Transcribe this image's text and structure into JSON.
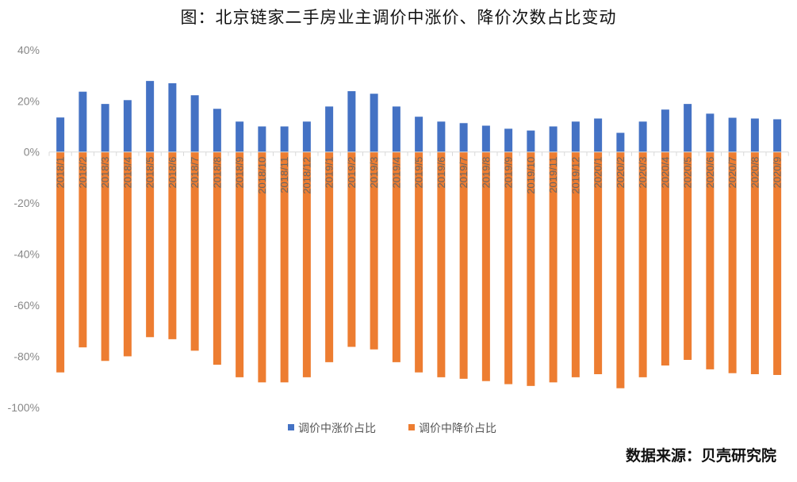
{
  "chart_data": {
    "type": "bar",
    "title": "图：北京链家二手房业主调价中涨价、降价次数占比变动",
    "source": "数据来源：贝壳研究院",
    "categories": [
      "2018/1",
      "2018/2",
      "2018/3",
      "2018/4",
      "2018/5",
      "2018/6",
      "2018/7",
      "2018/8",
      "2018/9",
      "2018/10",
      "2018/11",
      "2018/12",
      "2019/1",
      "2019/2",
      "2019/3",
      "2019/4",
      "2019/5",
      "2019/6",
      "2019/7",
      "2019/8",
      "2019/9",
      "2019/10",
      "2019/11",
      "2019/12",
      "2020/1",
      "2020/2",
      "2020/3",
      "2020/4",
      "2020/5",
      "2020/6",
      "2020/7",
      "2020/8",
      "2020/9"
    ],
    "series": [
      {
        "name": "调价中涨价占比",
        "color": "#4472c4",
        "values": [
          13.5,
          23.6,
          18.8,
          20.3,
          27.8,
          26.9,
          22.2,
          16.9,
          11.9,
          10.0,
          10.0,
          11.9,
          17.8,
          23.8,
          22.8,
          17.8,
          13.8,
          11.9,
          11.3,
          10.3,
          9.1,
          8.4,
          10.0,
          11.9,
          13.1,
          7.5,
          11.9,
          16.6,
          18.8,
          15.0,
          13.4,
          13.1,
          12.8
        ]
      },
      {
        "name": "调价中降价占比",
        "color": "#ed7d31",
        "values": [
          -86.3,
          -76.5,
          -81.8,
          -80.0,
          -72.5,
          -73.3,
          -77.8,
          -83.3,
          -88.2,
          -90.2,
          -90.2,
          -88.2,
          -82.3,
          -76.3,
          -77.3,
          -82.3,
          -86.3,
          -88.2,
          -88.8,
          -89.7,
          -90.9,
          -91.6,
          -90.2,
          -88.2,
          -87.0,
          -92.5,
          -88.2,
          -83.6,
          -81.4,
          -85.1,
          -86.6,
          -87.0,
          -87.3
        ]
      }
    ],
    "yticks": [
      "40%",
      "20%",
      "0%",
      "-20%",
      "-40%",
      "-60%",
      "-80%",
      "-100%"
    ],
    "ylim": [
      -100,
      40
    ],
    "grid": false,
    "legend": "bottom"
  }
}
